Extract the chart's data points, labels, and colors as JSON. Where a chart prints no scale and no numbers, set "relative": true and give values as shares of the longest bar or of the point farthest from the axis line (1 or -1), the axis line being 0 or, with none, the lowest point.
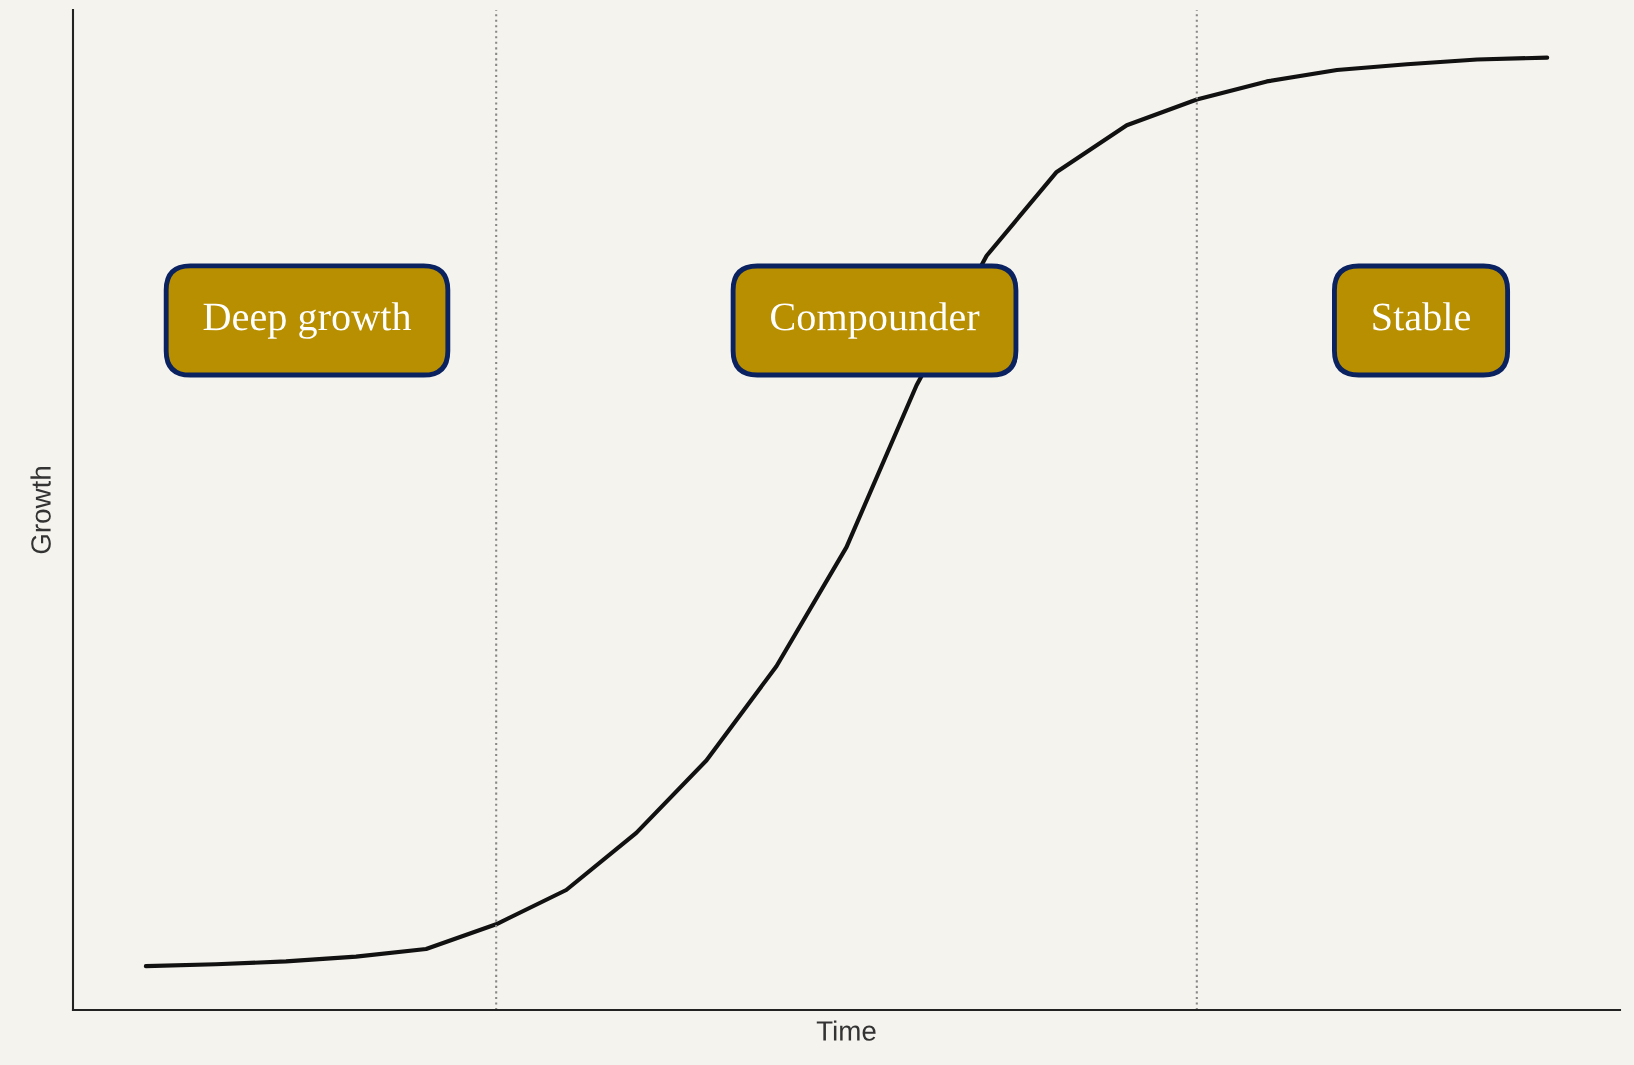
{
  "chart_data": {
    "type": "line",
    "relative": true,
    "xlabel": "Time",
    "ylabel": "Growth",
    "categories": [
      null,
      null,
      null,
      null,
      null,
      null,
      null,
      null,
      null,
      null,
      null,
      null,
      null,
      null,
      null,
      null,
      null,
      null,
      null,
      null,
      null
    ],
    "series": [
      {
        "color": "#111111",
        "values": [
          0.046,
          0.048,
          0.051,
          0.056,
          0.064,
          0.09,
          0.126,
          0.186,
          0.262,
          0.361,
          0.486,
          0.656,
          0.792,
          0.88,
          0.929,
          0.956,
          0.975,
          0.987,
          0.993,
          0.998,
          1
        ]
      }
    ],
    "annotations": [
      "Deep growth",
      "Compounder",
      "Stable"
    ]
  }
}
